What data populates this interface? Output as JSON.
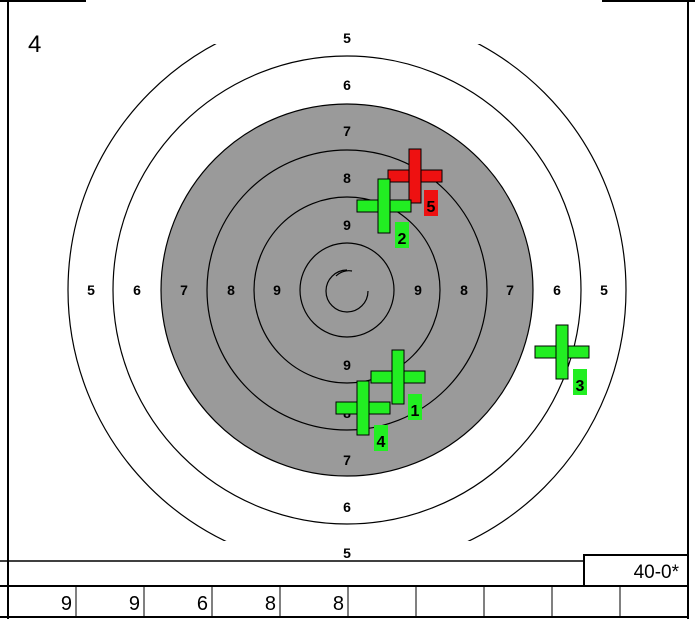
{
  "card": {
    "number": "4"
  },
  "total": {
    "text": "40-0*"
  },
  "colors": {
    "shot_in_series": "#22ee22",
    "shot_last": "#ee1111",
    "black_zone": "#9a9a9a",
    "ring_line": "#000000",
    "background": "#ffffff"
  },
  "rings": {
    "top": [
      "5",
      "6",
      "7",
      "8",
      "9"
    ],
    "bottom": [
      "9",
      "8",
      "7",
      "6",
      "5"
    ],
    "left": [
      "5",
      "6",
      "7",
      "8",
      "9"
    ],
    "right": [
      "9",
      "8",
      "7",
      "6",
      "5"
    ]
  },
  "shots": [
    {
      "number": "5",
      "status": "last",
      "icon": "cross-marker-icon"
    },
    {
      "number": "2",
      "status": "series",
      "icon": "cross-marker-icon"
    },
    {
      "number": "3",
      "status": "series",
      "icon": "cross-marker-icon"
    },
    {
      "number": "1",
      "status": "series",
      "icon": "cross-marker-icon"
    },
    {
      "number": "4",
      "status": "series",
      "icon": "cross-marker-icon"
    }
  ],
  "score_row": [
    "9",
    "9",
    "6",
    "8",
    "8",
    "",
    "",
    "",
    "",
    ""
  ]
}
